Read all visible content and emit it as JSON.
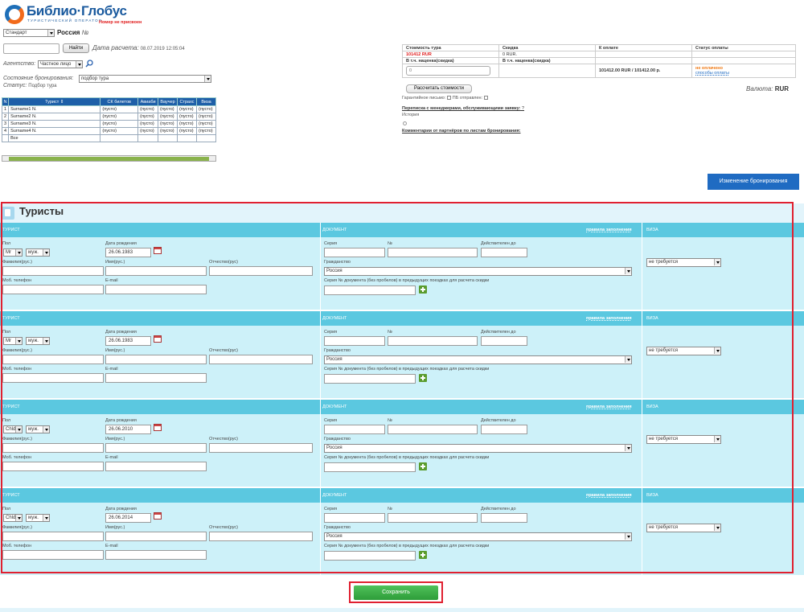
{
  "header": {
    "logo_name": "Библио·Глобус",
    "logo_sub": "ТУРИСТИЧЕСКИЙ ОПЕРАТОР",
    "number_status": "Номер не присвоен"
  },
  "top": {
    "type_select": "Стандарт",
    "country": "Россия",
    "number_label": "№",
    "find_button": "Найти",
    "calc_date_label": "Дата расчета:",
    "calc_date_value": "08.07.2019 12:05:04",
    "agency_label": "Агентство:",
    "agency_select": "Частное лицо",
    "booking_state_label": "Состояние бронирования:",
    "booking_state_value": "подбор тура",
    "status_label": "Статус:",
    "status_value": "Подбор тура"
  },
  "mini_table": {
    "headers": [
      "N",
      "Турист",
      "СК билетов",
      "Авиаби",
      "Ваучер",
      "Страхс",
      "Виза"
    ],
    "rows": [
      {
        "n": "1",
        "name": "Surname1 N.",
        "c1": "(пусто)",
        "c2": "(пусто)",
        "c3": "(пусто)",
        "c4": "(пусто)",
        "c5": "(пусто)"
      },
      {
        "n": "2",
        "name": "Surname2 N.",
        "c1": "(пусто)",
        "c2": "(пусто)",
        "c3": "(пусто)",
        "c4": "(пусто)",
        "c5": "(пусто)"
      },
      {
        "n": "3",
        "name": "Surname3 N.",
        "c1": "(пусто)",
        "c2": "(пусто)",
        "c3": "(пусто)",
        "c4": "(пусто)",
        "c5": "(пусто)"
      },
      {
        "n": "4",
        "name": "Surname4 N.",
        "c1": "(пусто)",
        "c2": "(пусто)",
        "c3": "(пусто)",
        "c4": "(пусто)",
        "c5": "(пусто)"
      }
    ],
    "footer": "Все"
  },
  "price": {
    "h_cost": "Стоимость тура",
    "h_discount": "Скидка",
    "h_pay": "К оплате",
    "h_status": "Статус оплаты",
    "cost_value": "101412 RUR",
    "discount_value": "0 RUR.",
    "markup_label_1": "В т.ч. наценка(скидка)",
    "markup_label_2": "В т.ч. наценка(скидка)",
    "markup_input": "0",
    "pay_value": "101412.00 RUR / 101412.00 р.",
    "pay_status": "не оплачено",
    "pay_methods": "способы оплаты",
    "calc_button": "Рассчитать стоимости",
    "currency_label": "Валюта:",
    "currency_value": "RUR",
    "guarantee": "Гарантийное письмо:",
    "pb_sent": "ПБ отправлен:",
    "correspondence": "Переписка с менеджерами, обслуживающими заявку:",
    "question": "?",
    "history": "История",
    "partner_comments": "Комментарии от партнёров по листам бронирования:"
  },
  "change_button": "Изменение бронирования",
  "tourists_section": {
    "title": "Туристы",
    "hdr_tourist": "ТУРИСТ",
    "hdr_document": "ДОКУМЕНТ",
    "hdr_rules": "правила заполнения",
    "hdr_visa": "ВИЗА",
    "lbl_sex": "Пол",
    "lbl_birth": "Дата рождения",
    "lbl_lastname": "Фамилия(рус.)",
    "lbl_firstname": "Имя(рус.)",
    "lbl_patronymic": "Отчество(рус)",
    "lbl_phone": "Моб. телефон",
    "lbl_email": "E-mail",
    "lbl_series": "Серия",
    "lbl_num": "№",
    "lbl_valid": "Действителен до",
    "lbl_citizenship": "Гражданство",
    "lbl_prev_doc": "Серия № документа (без пробелов) в предыдущих поездках для расчета скидки",
    "tourists": [
      {
        "title": "Mr",
        "sex": "муж.",
        "birth": "26.06.1983",
        "citizenship": "Россия",
        "visa": "не требуется"
      },
      {
        "title": "Mr",
        "sex": "муж.",
        "birth": "26.06.1983",
        "citizenship": "Россия",
        "visa": "не требуется"
      },
      {
        "title": "Chld",
        "sex": "муж.",
        "birth": "26.06.2010",
        "citizenship": "Россия",
        "visa": "не требуется"
      },
      {
        "title": "Chld",
        "sex": "муж.",
        "birth": "26.06.2014",
        "citizenship": "Россия",
        "visa": "не требуется"
      }
    ]
  },
  "save_button": "Сохранить"
}
